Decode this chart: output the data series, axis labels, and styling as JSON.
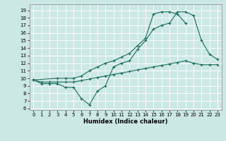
{
  "xlabel": "Humidex (Indice chaleur)",
  "bg_color": "#cce8e4",
  "grid_color": "#ffffff",
  "line_color": "#1a6b5a",
  "xlim": [
    -0.5,
    23.5
  ],
  "ylim": [
    5.8,
    19.8
  ],
  "xticks": [
    0,
    1,
    2,
    3,
    4,
    5,
    6,
    7,
    8,
    9,
    10,
    11,
    12,
    13,
    14,
    15,
    16,
    17,
    18,
    19,
    20,
    21,
    22,
    23
  ],
  "yticks": [
    6,
    7,
    8,
    9,
    10,
    11,
    12,
    13,
    14,
    15,
    16,
    17,
    18,
    19
  ],
  "curve1_x": [
    0,
    1,
    2,
    3,
    4,
    5,
    6,
    7,
    8,
    9,
    10,
    11,
    12,
    13,
    14,
    15,
    16,
    17,
    18,
    19,
    20,
    21,
    22,
    23
  ],
  "curve1_y": [
    9.8,
    9.3,
    9.3,
    9.3,
    8.8,
    8.8,
    7.3,
    6.5,
    8.3,
    9.0,
    11.5,
    12.0,
    12.3,
    13.8,
    15.0,
    16.5,
    17.0,
    17.3,
    18.8,
    18.8,
    18.3,
    15.0,
    13.2,
    12.5
  ],
  "curve2_x": [
    0,
    3,
    4,
    5,
    6,
    7,
    8,
    9,
    10,
    11,
    12,
    13,
    14,
    15,
    16,
    17,
    18,
    19
  ],
  "curve2_y": [
    9.8,
    10.0,
    10.0,
    10.0,
    10.3,
    11.0,
    11.5,
    12.0,
    12.3,
    12.8,
    13.3,
    14.3,
    15.3,
    18.5,
    18.8,
    18.8,
    18.5,
    17.3
  ],
  "curve3_x": [
    0,
    1,
    2,
    3,
    4,
    5,
    6,
    7,
    8,
    9,
    10,
    11,
    12,
    13,
    14,
    15,
    16,
    17,
    18,
    19,
    20,
    21,
    22,
    23
  ],
  "curve3_y": [
    9.8,
    9.5,
    9.5,
    9.5,
    9.5,
    9.5,
    9.7,
    9.9,
    10.1,
    10.3,
    10.5,
    10.7,
    10.9,
    11.1,
    11.3,
    11.5,
    11.7,
    11.9,
    12.1,
    12.3,
    12.0,
    11.8,
    11.8,
    11.8
  ]
}
